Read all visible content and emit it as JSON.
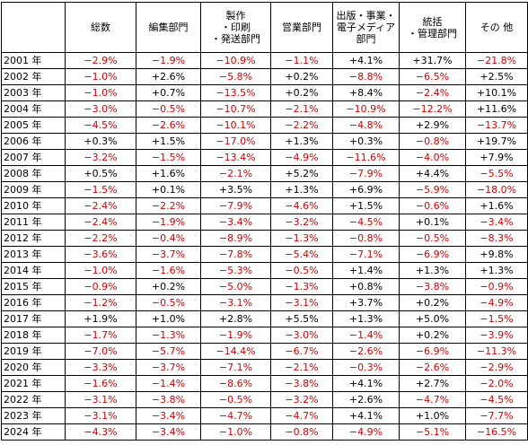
{
  "columns": [
    {
      "label": ""
    },
    {
      "label": "総数"
    },
    {
      "label": "編集部門"
    },
    {
      "label": "製作\n・印刷\n・発送部門"
    },
    {
      "label": "営業部門"
    },
    {
      "label": "出版・事業・\n電子メディア\n部門"
    },
    {
      "label": "統括\n・管理部門"
    },
    {
      "label": "その 他"
    }
  ],
  "colors": {
    "negative": "#d40000",
    "positive": "#000000"
  },
  "rows": [
    {
      "year": "2001 年",
      "values": [
        "−2.9%",
        "−1.9%",
        "−10.9%",
        "−1.1%",
        "+4.1%",
        "+31.7%",
        "−21.8%"
      ]
    },
    {
      "year": "2002 年",
      "values": [
        "−1.0%",
        "+2.6%",
        "−5.8%",
        "+0.2%",
        "−8.8%",
        "−6.5%",
        "+2.5%"
      ]
    },
    {
      "year": "2003 年",
      "values": [
        "−1.0%",
        "+0.7%",
        "−13.5%",
        "+0.2%",
        "+8.4%",
        "−2.4%",
        "+10.1%"
      ]
    },
    {
      "year": "2004 年",
      "values": [
        "−3.0%",
        "−0.5%",
        "−10.7%",
        "−2.1%",
        "−10.9%",
        "−12.2%",
        "+11.6%"
      ]
    },
    {
      "year": "2005 年",
      "values": [
        "−4.5%",
        "−2.6%",
        "−10.1%",
        "−2.2%",
        "−4.8%",
        "+2.9%",
        "−13.7%"
      ]
    },
    {
      "year": "2006 年",
      "values": [
        "+0.3%",
        "+1.5%",
        "−17.0%",
        "+1.3%",
        "+0.3%",
        "−0.8%",
        "+19.7%"
      ]
    },
    {
      "year": "2007 年",
      "values": [
        "−3.2%",
        "−1.5%",
        "−13.4%",
        "−4.9%",
        "−11.6%",
        "−4.0%",
        "+7.9%"
      ]
    },
    {
      "year": "2008 年",
      "values": [
        "+0.5%",
        "+1.6%",
        "−2.1%",
        "+5.2%",
        "−7.9%",
        "+4.4%",
        "−5.5%"
      ]
    },
    {
      "year": "2009 年",
      "values": [
        "−1.5%",
        "+0.1%",
        "+3.5%",
        "+1.3%",
        "+6.9%",
        "−5.9%",
        "−18.0%"
      ]
    },
    {
      "year": "2010 年",
      "values": [
        "−2.4%",
        "−2.2%",
        "−7.9%",
        "−4.6%",
        "+1.5%",
        "−0.6%",
        "+1.6%"
      ]
    },
    {
      "year": "2011 年",
      "values": [
        "−2.4%",
        "−1.9%",
        "−3.4%",
        "−3.2%",
        "−4.5%",
        "+0.1%",
        "−3.4%"
      ]
    },
    {
      "year": "2012 年",
      "values": [
        "−2.2%",
        "−0.4%",
        "−8.9%",
        "−1.3%",
        "−0.8%",
        "−0.5%",
        "−8.3%"
      ]
    },
    {
      "year": "2013 年",
      "values": [
        "−3.6%",
        "−3.7%",
        "−7.8%",
        "−5.4%",
        "−7.1%",
        "−6.9%",
        "+9.8%"
      ]
    },
    {
      "year": "2014 年",
      "values": [
        "−1.0%",
        "−1.6%",
        "−5.3%",
        "−0.5%",
        "+1.4%",
        "+1.3%",
        "+1.3%"
      ]
    },
    {
      "year": "2015 年",
      "values": [
        "−0.9%",
        "+0.2%",
        "−5.0%",
        "−1.3%",
        "+0.8%",
        "−3.8%",
        "−0.9%"
      ]
    },
    {
      "year": "2016 年",
      "values": [
        "−1.2%",
        "−0.5%",
        "−3.1%",
        "−3.1%",
        "+3.7%",
        "+0.2%",
        "−4.9%"
      ]
    },
    {
      "year": "2017 年",
      "values": [
        "+1.9%",
        "+1.0%",
        "+2.8%",
        "+5.5%",
        "+1.3%",
        "+5.0%",
        "−1.5%"
      ]
    },
    {
      "year": "2018 年",
      "values": [
        "−1.7%",
        "−1.3%",
        "−1.9%",
        "−3.0%",
        "−1.4%",
        "+0.2%",
        "−3.9%"
      ]
    },
    {
      "year": "2019 年",
      "values": [
        "−7.0%",
        "−5.7%",
        "−14.4%",
        "−6.7%",
        "−2.6%",
        "−6.9%",
        "−11.3%"
      ]
    },
    {
      "year": "2020 年",
      "values": [
        "−3.3%",
        "−3.7%",
        "−7.1%",
        "−2.1%",
        "−0.3%",
        "−2.6%",
        "−2.9%"
      ]
    },
    {
      "year": "2021 年",
      "values": [
        "−1.6%",
        "−1.4%",
        "−8.6%",
        "−3.8%",
        "+4.1%",
        "+2.7%",
        "−2.0%"
      ]
    },
    {
      "year": "2022 年",
      "values": [
        "−3.1%",
        "−3.8%",
        "−0.5%",
        "−3.2%",
        "+2.6%",
        "−4.7%",
        "−4.5%"
      ]
    },
    {
      "year": "2023 年",
      "values": [
        "−3.1%",
        "−3.4%",
        "−4.7%",
        "−4.7%",
        "+4.1%",
        "+1.0%",
        "−7.7%"
      ]
    },
    {
      "year": "2024 年",
      "values": [
        "−4.3%",
        "−3.4%",
        "−1.0%",
        "−0.8%",
        "−4.9%",
        "−5.1%",
        "−16.5%"
      ]
    }
  ]
}
